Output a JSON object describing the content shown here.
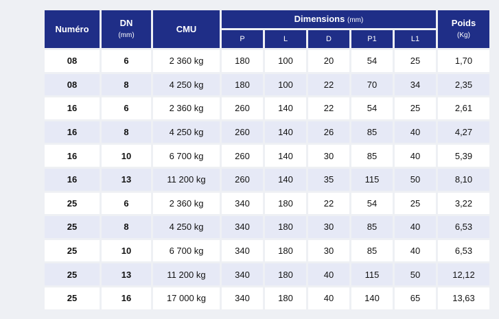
{
  "table": {
    "headers": {
      "numero": "Numéro",
      "dn": "DN",
      "dn_unit": "(mm)",
      "cmu": "CMU",
      "dimensions": "Dimensions",
      "dimensions_unit": "(mm)",
      "poids": "Poids",
      "poids_unit": "(Kg)",
      "dimension_columns": [
        "P",
        "L",
        "D",
        "P1",
        "L1"
      ]
    },
    "rows": [
      {
        "numero": "08",
        "dn": "6",
        "cmu": "2 360 kg",
        "p": "180",
        "l": "100",
        "d": "20",
        "p1": "54",
        "l1": "25",
        "poids": "1,70"
      },
      {
        "numero": "08",
        "dn": "8",
        "cmu": "4 250 kg",
        "p": "180",
        "l": "100",
        "d": "22",
        "p1": "70",
        "l1": "34",
        "poids": "2,35"
      },
      {
        "numero": "16",
        "dn": "6",
        "cmu": "2 360 kg",
        "p": "260",
        "l": "140",
        "d": "22",
        "p1": "54",
        "l1": "25",
        "poids": "2,61"
      },
      {
        "numero": "16",
        "dn": "8",
        "cmu": "4 250 kg",
        "p": "260",
        "l": "140",
        "d": "26",
        "p1": "85",
        "l1": "40",
        "poids": "4,27"
      },
      {
        "numero": "16",
        "dn": "10",
        "cmu": "6 700 kg",
        "p": "260",
        "l": "140",
        "d": "30",
        "p1": "85",
        "l1": "40",
        "poids": "5,39"
      },
      {
        "numero": "16",
        "dn": "13",
        "cmu": "11 200 kg",
        "p": "260",
        "l": "140",
        "d": "35",
        "p1": "115",
        "l1": "50",
        "poids": "8,10"
      },
      {
        "numero": "25",
        "dn": "6",
        "cmu": "2 360 kg",
        "p": "340",
        "l": "180",
        "d": "22",
        "p1": "54",
        "l1": "25",
        "poids": "3,22"
      },
      {
        "numero": "25",
        "dn": "8",
        "cmu": "4 250 kg",
        "p": "340",
        "l": "180",
        "d": "30",
        "p1": "85",
        "l1": "40",
        "poids": "6,53"
      },
      {
        "numero": "25",
        "dn": "10",
        "cmu": "6 700 kg",
        "p": "340",
        "l": "180",
        "d": "30",
        "p1": "85",
        "l1": "40",
        "poids": "6,53"
      },
      {
        "numero": "25",
        "dn": "13",
        "cmu": "11 200 kg",
        "p": "340",
        "l": "180",
        "d": "40",
        "p1": "115",
        "l1": "50",
        "poids": "12,12"
      },
      {
        "numero": "25",
        "dn": "16",
        "cmu": "17 000 kg",
        "p": "340",
        "l": "180",
        "d": "40",
        "p1": "140",
        "l1": "65",
        "poids": "13,63"
      }
    ]
  },
  "colors": {
    "header_bg": "#1f2e87",
    "row_alt_bg": "#e6e9f6",
    "row_bg": "#ffffff"
  }
}
